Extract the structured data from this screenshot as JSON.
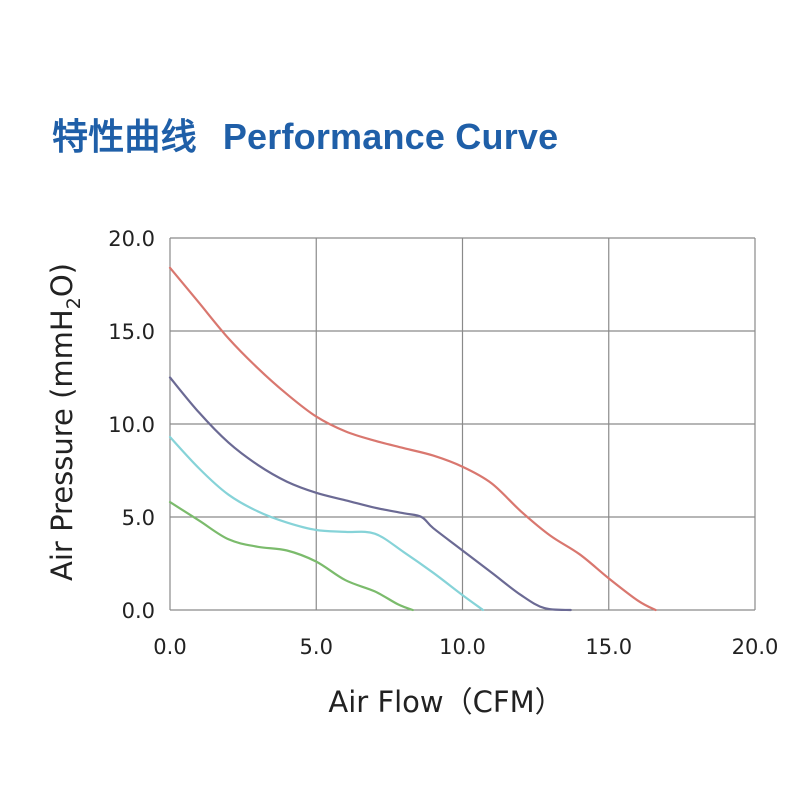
{
  "title": {
    "cn": "特性曲线",
    "en": "Performance Curve",
    "color": "#1f5fa8"
  },
  "chart_data": {
    "type": "line",
    "title": "特性曲线  Performance Curve",
    "xlabel": "Air Flow（CFM）",
    "ylabel_main": "Air Pressure (mmH",
    "ylabel_sub": "2",
    "ylabel_end": "O)",
    "xlim": [
      0,
      20
    ],
    "ylim": [
      0,
      20
    ],
    "x_ticks": [
      "0.0",
      "5.0",
      "10.0",
      "15.0",
      "20.0"
    ],
    "y_ticks": [
      "0.0",
      "5.0",
      "10.0",
      "15.0",
      "20.0"
    ],
    "grid": true,
    "series": [
      {
        "color": "#d9776f",
        "points": [
          [
            0,
            18.4
          ],
          [
            1,
            16.5
          ],
          [
            2,
            14.6
          ],
          [
            3,
            13.0
          ],
          [
            4,
            11.6
          ],
          [
            5,
            10.4
          ],
          [
            6,
            9.6
          ],
          [
            7,
            9.1
          ],
          [
            8,
            8.7
          ],
          [
            9,
            8.3
          ],
          [
            10,
            7.7
          ],
          [
            11,
            6.8
          ],
          [
            12,
            5.3
          ],
          [
            13,
            4.0
          ],
          [
            14,
            3.0
          ],
          [
            15,
            1.7
          ],
          [
            16,
            0.5
          ],
          [
            16.6,
            0.0
          ]
        ]
      },
      {
        "color": "#6b6a94",
        "points": [
          [
            0,
            12.5
          ],
          [
            1,
            10.6
          ],
          [
            2,
            9.0
          ],
          [
            3,
            7.8
          ],
          [
            4,
            6.9
          ],
          [
            5,
            6.3
          ],
          [
            6,
            5.9
          ],
          [
            7,
            5.5
          ],
          [
            8,
            5.2
          ],
          [
            8.6,
            5.0
          ],
          [
            9,
            4.4
          ],
          [
            10,
            3.2
          ],
          [
            11,
            2.0
          ],
          [
            12,
            0.8
          ],
          [
            12.8,
            0.1
          ],
          [
            13.7,
            0.0
          ]
        ]
      },
      {
        "color": "#86d3d8",
        "points": [
          [
            0,
            9.3
          ],
          [
            1,
            7.6
          ],
          [
            2,
            6.2
          ],
          [
            3,
            5.3
          ],
          [
            4,
            4.7
          ],
          [
            5,
            4.3
          ],
          [
            6,
            4.2
          ],
          [
            7,
            4.1
          ],
          [
            8,
            3.1
          ],
          [
            9,
            2.0
          ],
          [
            10,
            0.8
          ],
          [
            10.7,
            0.0
          ]
        ]
      },
      {
        "color": "#7bbb6c",
        "points": [
          [
            0,
            5.8
          ],
          [
            1,
            4.8
          ],
          [
            2,
            3.8
          ],
          [
            3,
            3.4
          ],
          [
            4,
            3.2
          ],
          [
            5,
            2.6
          ],
          [
            6,
            1.6
          ],
          [
            7,
            1.0
          ],
          [
            7.8,
            0.3
          ],
          [
            8.3,
            0.0
          ]
        ]
      }
    ]
  }
}
